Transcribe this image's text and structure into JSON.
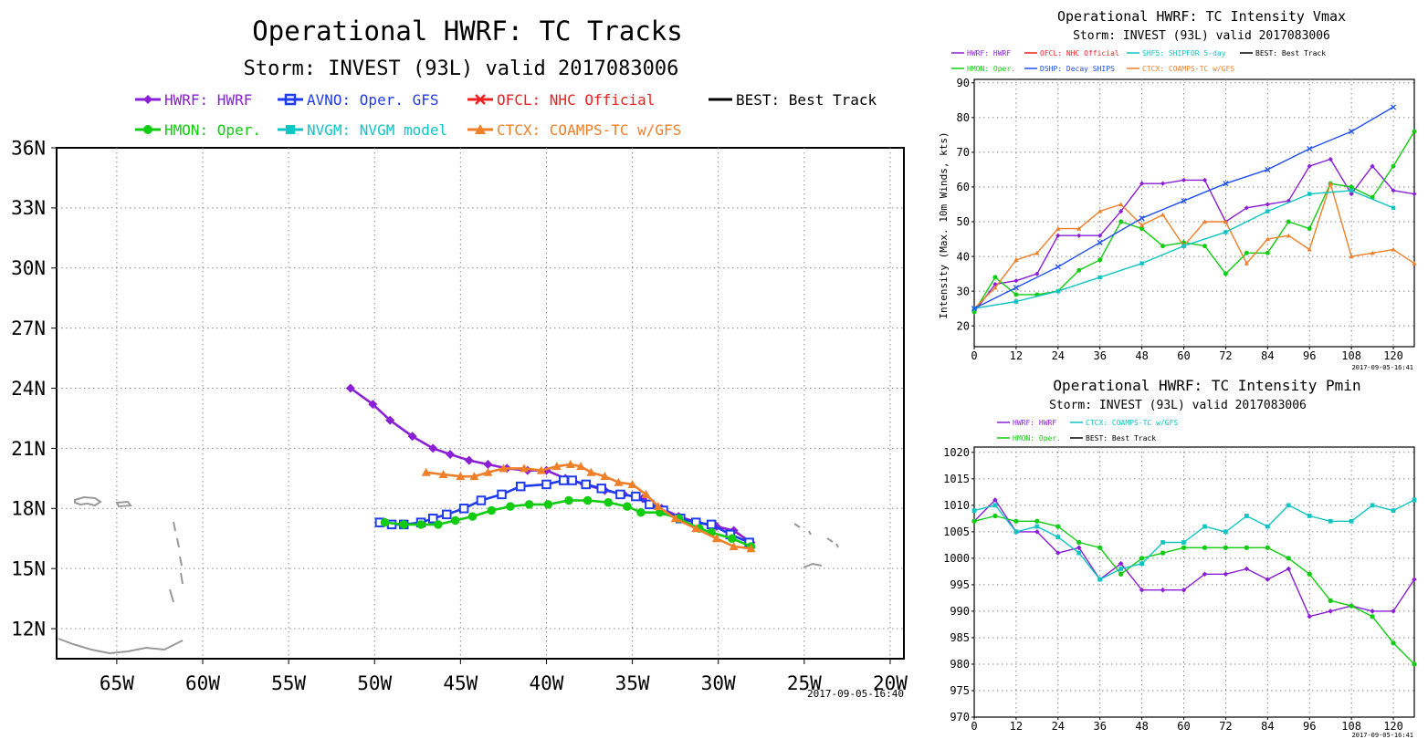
{
  "colors": {
    "hwrf": "#8a1fd6",
    "avno": "#1f3bf0",
    "ofcl": "#f02020",
    "best": "#000000",
    "hmon": "#11cc11",
    "nvgm": "#11c4c4",
    "ctcx": "#f07f2a",
    "dshp": "#2050f0",
    "shf5": "#11c4c4"
  },
  "chart_data": [
    {
      "id": "tracks",
      "type": "line",
      "title": "Operational HWRF: TC Tracks",
      "subtitle": "Storm: INVEST (93L) valid 2017083006",
      "timestamp": "2017-09-05-16:40",
      "legend": [
        {
          "key": "hwrf",
          "label": "HWRF: HWRF"
        },
        {
          "key": "avno",
          "label": "AVNO: Oper. GFS"
        },
        {
          "key": "ofcl",
          "label": "OFCL: NHC Official"
        },
        {
          "key": "best",
          "label": "BEST: Best Track"
        },
        {
          "key": "hmon",
          "label": "HMON: Oper."
        },
        {
          "key": "nvgm",
          "label": "NVGM: NVGM model"
        },
        {
          "key": "ctcx",
          "label": "CTCX: COAMPS-TC w/GFS"
        }
      ],
      "x_ticks": [
        {
          "v": -65,
          "label": "65W"
        },
        {
          "v": -60,
          "label": "60W"
        },
        {
          "v": -55,
          "label": "55W"
        },
        {
          "v": -50,
          "label": "50W"
        },
        {
          "v": -45,
          "label": "45W"
        },
        {
          "v": -40,
          "label": "40W"
        },
        {
          "v": -35,
          "label": "35W"
        },
        {
          "v": -30,
          "label": "30W"
        },
        {
          "v": -25,
          "label": "25W"
        },
        {
          "v": -20,
          "label": "20W"
        }
      ],
      "y_ticks": [
        {
          "v": 12,
          "label": "12N"
        },
        {
          "v": 15,
          "label": "15N"
        },
        {
          "v": 18,
          "label": "18N"
        },
        {
          "v": 21,
          "label": "21N"
        },
        {
          "v": 24,
          "label": "24N"
        },
        {
          "v": 27,
          "label": "27N"
        },
        {
          "v": 30,
          "label": "30N"
        },
        {
          "v": 33,
          "label": "33N"
        },
        {
          "v": 36,
          "label": "36N"
        }
      ],
      "xlim": [
        -68.5,
        -19.2
      ],
      "ylim": [
        10.5,
        36.0
      ],
      "series": [
        {
          "key": "hwrf",
          "marker": "diamond",
          "lon": [
            -28.1,
            -29.1,
            -30.1,
            -31.2,
            -32.3,
            -33.3,
            -34.4,
            -35.5,
            -36.6,
            -37.8,
            -38.9,
            -40.0,
            -41.1,
            -42.3,
            -43.4,
            -44.5,
            -45.6,
            -46.6,
            -47.8,
            -49.1,
            -50.1,
            -51.4
          ],
          "lat": [
            16.3,
            16.9,
            17.1,
            17.3,
            17.6,
            18.0,
            18.5,
            18.7,
            18.9,
            19.2,
            19.5,
            19.9,
            19.9,
            20.0,
            20.2,
            20.4,
            20.7,
            21.0,
            21.6,
            22.4,
            23.2,
            24.0
          ]
        },
        {
          "key": "avno",
          "marker": "square",
          "lon": [
            -28.2,
            -29.3,
            -30.4,
            -31.3,
            -32.2,
            -33.2,
            -34.0,
            -34.8,
            -35.7,
            -36.8,
            -37.7,
            -38.5,
            -39.0,
            -40.0,
            -41.5,
            -42.6,
            -43.8,
            -44.8,
            -45.8,
            -46.6,
            -47.3,
            -48.3,
            -49.0,
            -49.7
          ],
          "lat": [
            16.3,
            16.7,
            17.2,
            17.3,
            17.5,
            17.9,
            18.2,
            18.6,
            18.7,
            19.0,
            19.2,
            19.4,
            19.4,
            19.2,
            19.1,
            18.7,
            18.4,
            18.0,
            17.7,
            17.5,
            17.3,
            17.2,
            17.2,
            17.3
          ]
        },
        {
          "key": "hmon",
          "marker": "circle",
          "lon": [
            -28.1,
            -29.2,
            -30.4,
            -31.1,
            -32.3,
            -33.4,
            -34.5,
            -35.3,
            -36.4,
            -37.6,
            -38.7,
            -39.9,
            -41.0,
            -42.1,
            -43.2,
            -44.3,
            -45.3,
            -46.3,
            -47.3,
            -48.3,
            -49.4
          ],
          "lat": [
            16.1,
            16.5,
            16.8,
            17.0,
            17.5,
            17.8,
            17.8,
            18.1,
            18.3,
            18.4,
            18.4,
            18.2,
            18.2,
            18.1,
            17.9,
            17.6,
            17.4,
            17.2,
            17.2,
            17.2,
            17.3
          ]
        },
        {
          "key": "ctcx",
          "marker": "triangle",
          "lon": [
            -28.1,
            -29.1,
            -30.1,
            -31.3,
            -32.5,
            -33.5,
            -34.2,
            -35.0,
            -35.8,
            -36.6,
            -37.4,
            -38.0,
            -38.6,
            -39.4,
            -40.3,
            -41.3,
            -42.5,
            -43.4,
            -44.2,
            -45.0,
            -46.0,
            -47.0
          ],
          "lat": [
            16.0,
            16.1,
            16.5,
            17.0,
            17.5,
            18.1,
            18.7,
            19.2,
            19.3,
            19.6,
            19.8,
            20.1,
            20.2,
            20.1,
            19.9,
            20.0,
            20.0,
            19.8,
            19.6,
            19.6,
            19.7,
            19.8
          ]
        }
      ]
    },
    {
      "id": "vmax",
      "type": "line",
      "title": "Operational HWRF: TC Intensity Vmax",
      "subtitle": "Storm: INVEST (93L) valid 2017083006",
      "timestamp": "2017-09-05-16:41",
      "ylabel": "Intensity (Max. 10m Winds, kts)",
      "legend": [
        {
          "key": "hwrf",
          "label": "HWRF: HWRF"
        },
        {
          "key": "ofcl",
          "label": "OFCL: NHC Official"
        },
        {
          "key": "shf5",
          "label": "SHF5: SHIPFOR 5-day"
        },
        {
          "key": "best",
          "label": "BEST: Best Track"
        },
        {
          "key": "hmon",
          "label": "HMON: Oper."
        },
        {
          "key": "dshp",
          "label": "DSHP: Decay SHIPS"
        },
        {
          "key": "ctcx",
          "label": "CTCX: COAMPS-TC w/GFS"
        }
      ],
      "x_ticks": [
        0,
        12,
        24,
        36,
        48,
        60,
        72,
        84,
        96,
        108,
        120
      ],
      "y_ticks": [
        20,
        30,
        40,
        50,
        60,
        70,
        80,
        90
      ],
      "xlim": [
        0,
        126
      ],
      "ylim": [
        14,
        91
      ],
      "series": [
        {
          "key": "hwrf",
          "marker": "diamond",
          "x": [
            0,
            6,
            12,
            18,
            24,
            30,
            36,
            42,
            48,
            54,
            60,
            66,
            72,
            78,
            84,
            90,
            96,
            102,
            108,
            114,
            120,
            126
          ],
          "y": [
            24,
            32,
            33,
            35,
            46,
            46,
            46,
            53,
            61,
            61,
            62,
            62,
            50,
            54,
            55,
            56,
            66,
            68,
            58,
            66,
            59,
            58
          ]
        },
        {
          "key": "hmon",
          "marker": "circle",
          "x": [
            0,
            6,
            12,
            18,
            24,
            30,
            36,
            42,
            48,
            54,
            60,
            66,
            72,
            78,
            84,
            90,
            96,
            102,
            108,
            114,
            120,
            126
          ],
          "y": [
            24,
            34,
            29,
            29,
            30,
            36,
            39,
            50,
            48,
            43,
            44,
            43,
            35,
            41,
            41,
            50,
            48,
            61,
            60,
            57,
            66,
            76
          ]
        },
        {
          "key": "ctcx",
          "marker": "triangle",
          "x": [
            0,
            6,
            12,
            18,
            24,
            30,
            36,
            42,
            48,
            54,
            60,
            66,
            72,
            78,
            84,
            90,
            96,
            102,
            108,
            114,
            120,
            126
          ],
          "y": [
            25,
            31,
            39,
            41,
            48,
            48,
            53,
            55,
            49,
            52,
            43,
            50,
            50,
            38,
            45,
            46,
            42,
            61,
            40,
            41,
            42,
            38
          ]
        },
        {
          "key": "shf5",
          "marker": "square",
          "x": [
            0,
            12,
            24,
            36,
            48,
            60,
            72,
            84,
            96,
            108,
            120
          ],
          "y": [
            25,
            27,
            30,
            34,
            38,
            43,
            47,
            53,
            58,
            59,
            54
          ]
        },
        {
          "key": "dshp",
          "marker": "x",
          "x": [
            0,
            12,
            24,
            36,
            48,
            60,
            72,
            84,
            96,
            108,
            120
          ],
          "y": [
            25,
            31,
            37,
            44,
            51,
            56,
            61,
            65,
            71,
            76,
            83
          ]
        }
      ]
    },
    {
      "id": "pmin",
      "type": "line",
      "title": "Operational HWRF: TC Intensity Pmin",
      "subtitle": "Storm: INVEST (93L) valid 2017083006",
      "timestamp": "2017-09-05-16:41",
      "legend": [
        {
          "key": "hwrf",
          "label": "HWRF: HWRF"
        },
        {
          "key": "ctcx_cyan",
          "label": "CTCX: COAMPS-TC w/GFS"
        },
        {
          "key": "hmon",
          "label": "HMON: Oper."
        },
        {
          "key": "best",
          "label": "BEST: Best Track"
        }
      ],
      "x_ticks": [
        0,
        12,
        24,
        36,
        48,
        60,
        72,
        84,
        96,
        108,
        120
      ],
      "y_ticks": [
        970,
        975,
        980,
        985,
        990,
        995,
        1000,
        1005,
        1010,
        1015,
        1020
      ],
      "xlim": [
        0,
        126
      ],
      "ylim": [
        970,
        1021
      ],
      "series": [
        {
          "key": "hwrf",
          "marker": "diamond",
          "x": [
            0,
            6,
            12,
            18,
            24,
            30,
            36,
            42,
            48,
            54,
            60,
            66,
            72,
            78,
            84,
            90,
            96,
            102,
            108,
            114,
            120,
            126
          ],
          "y": [
            1007,
            1011,
            1005,
            1005,
            1001,
            1002,
            996,
            999,
            994,
            994,
            994,
            997,
            997,
            998,
            996,
            998,
            989,
            990,
            991,
            990,
            990,
            996
          ]
        },
        {
          "key": "hmon",
          "marker": "circle",
          "x": [
            0,
            6,
            12,
            18,
            24,
            30,
            36,
            42,
            48,
            54,
            60,
            66,
            72,
            78,
            84,
            90,
            96,
            102,
            108,
            114,
            120,
            126
          ],
          "y": [
            1007,
            1008,
            1007,
            1007,
            1006,
            1003,
            1002,
            997,
            1000,
            1001,
            1002,
            1002,
            1002,
            1002,
            1002,
            1000,
            997,
            992,
            991,
            989,
            984,
            980
          ]
        },
        {
          "key": "ctcx_cyan",
          "marker": "square",
          "x": [
            0,
            6,
            12,
            18,
            24,
            30,
            36,
            42,
            48,
            54,
            60,
            66,
            72,
            78,
            84,
            90,
            96,
            102,
            108,
            114,
            120,
            126
          ],
          "y": [
            1009,
            1010,
            1005,
            1006,
            1004,
            1001,
            996,
            998,
            999,
            1003,
            1003,
            1006,
            1005,
            1008,
            1006,
            1010,
            1008,
            1007,
            1007,
            1010,
            1009,
            1011
          ]
        }
      ]
    }
  ]
}
